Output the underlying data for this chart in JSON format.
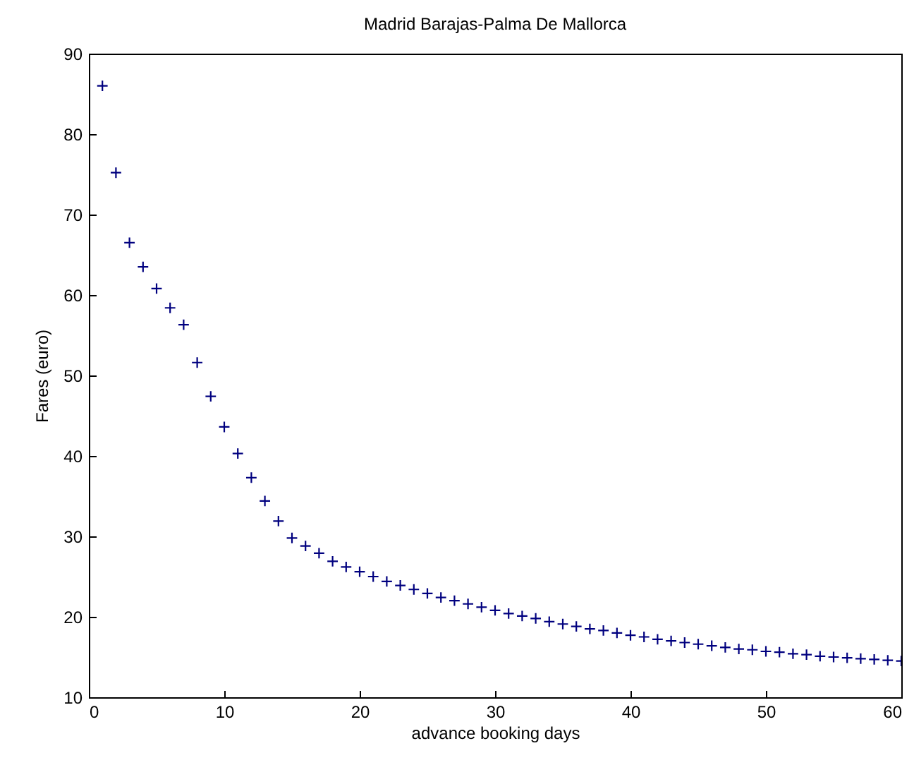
{
  "chart_data": {
    "type": "scatter",
    "title": "Madrid Barajas-Palma De Mallorca",
    "xlabel": "advance booking days",
    "ylabel": "Fares (euro)",
    "x": [
      1,
      2,
      3,
      4,
      5,
      6,
      7,
      8,
      9,
      10,
      11,
      12,
      13,
      14,
      15,
      16,
      17,
      18,
      19,
      20,
      21,
      22,
      23,
      24,
      25,
      26,
      27,
      28,
      29,
      30,
      31,
      32,
      33,
      34,
      35,
      36,
      37,
      38,
      39,
      40,
      41,
      42,
      43,
      44,
      45,
      46,
      47,
      48,
      49,
      50,
      51,
      52,
      53,
      54,
      55,
      56,
      57,
      58,
      59,
      60
    ],
    "series": [
      {
        "color": "#00007f",
        "values": [
          86,
          75.2,
          66.5,
          63.5,
          60.8,
          58.4,
          56.3,
          51.6,
          47.4,
          43.6,
          40.3,
          37.3,
          34.4,
          31.9,
          29.8,
          28.8,
          27.9,
          26.9,
          26.2,
          25.6,
          25.0,
          24.4,
          23.9,
          23.4,
          22.9,
          22.4,
          22.0,
          21.6,
          21.2,
          20.8,
          20.4,
          20.1,
          19.8,
          19.4,
          19.1,
          18.8,
          18.5,
          18.3,
          18.0,
          17.7,
          17.5,
          17.2,
          17.0,
          16.8,
          16.6,
          16.4,
          16.2,
          16.0,
          15.9,
          15.7,
          15.6,
          15.4,
          15.3,
          15.1,
          15.0,
          14.9,
          14.8,
          14.7,
          14.6,
          14.5
        ]
      }
    ],
    "xlim": [
      0,
      60
    ],
    "xticks": [
      0,
      10,
      20,
      30,
      40,
      50,
      60
    ],
    "ylim": [
      10,
      90
    ],
    "yticks": [
      10,
      20,
      30,
      40,
      50,
      60,
      70,
      80,
      90
    ],
    "grid": false,
    "marker": "cross"
  }
}
